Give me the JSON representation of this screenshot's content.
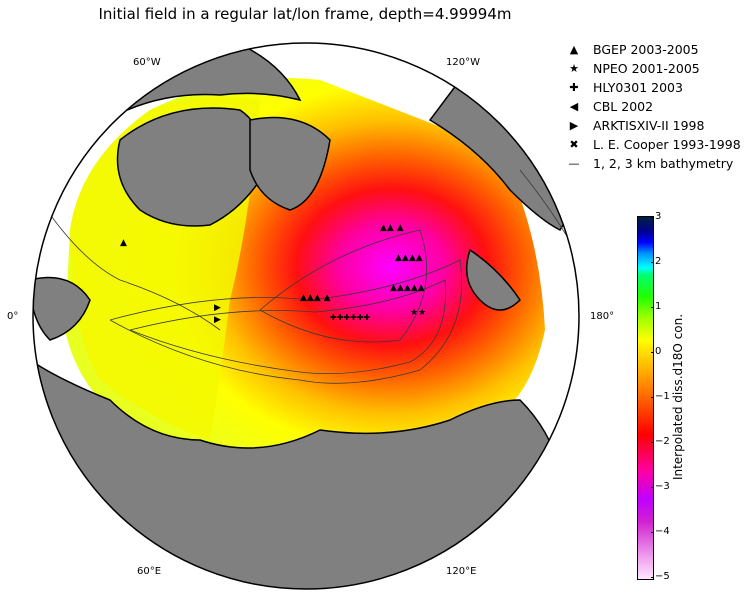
{
  "title": "Initial field in a regular lat/lon frame, depth=4.99994m",
  "meridian_labels": {
    "w60": "60°W",
    "w120": "120°W",
    "zero": "0°",
    "e180": "180°",
    "e60": "60°E",
    "e120": "120°E"
  },
  "legend": [
    {
      "symbol": "▲",
      "label": "BGEP 2003-2005",
      "icon": "triangle-up-marker"
    },
    {
      "symbol": "★",
      "label": "NPEO 2001-2005",
      "icon": "star-marker"
    },
    {
      "symbol": "✚",
      "label": "HLY0301 2003",
      "icon": "plus-marker"
    },
    {
      "symbol": "◀",
      "label": "CBL 2002",
      "icon": "triangle-left-marker"
    },
    {
      "symbol": "▶",
      "label": "ARKTISXIV-II 1998",
      "icon": "triangle-right-marker"
    },
    {
      "symbol": "✖",
      "label": "L. E. Cooper 1993-1998",
      "icon": "x-marker"
    },
    {
      "symbol": "—",
      "label": "1, 2, 3 km bathymetry",
      "icon": "line-marker"
    }
  ],
  "colorbar": {
    "label": "Interpolated diss.d18O con.",
    "ticks": [
      "3",
      "2",
      "1",
      "0",
      "−1",
      "−2",
      "−3",
      "−4",
      "−5"
    ],
    "range": [
      -5,
      3
    ]
  },
  "colors": {
    "land": "#808080",
    "ocean_empty": "#ffffff",
    "coast": "#000000"
  }
}
